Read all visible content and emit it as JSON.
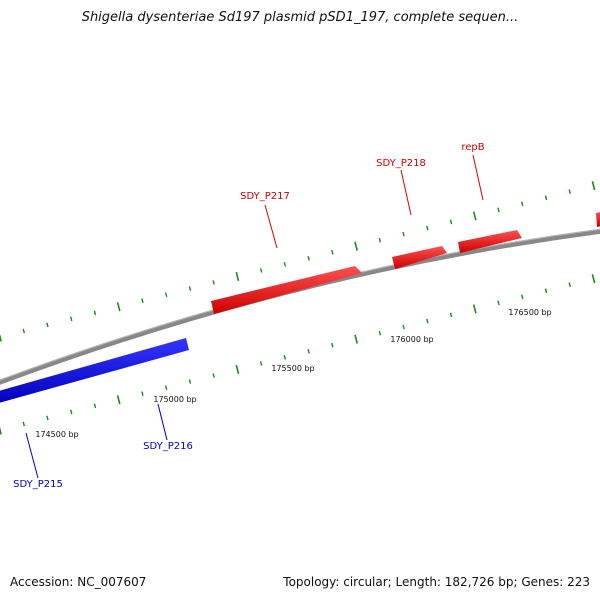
{
  "title": "Shigella dysenteriae Sd197 plasmid pSD1_197, complete sequen...",
  "footer": {
    "accession": "Accession: NC_007607",
    "summary": "Topology: circular; Length: 182,726 bp; Genes: 223"
  },
  "colors": {
    "forward_gene": "#ee1111",
    "reverse_gene": "#1111ee",
    "backbone": "#888888",
    "tick": "#1a8a1a",
    "label_text": "#111111"
  },
  "gene_labels": {
    "sdy_p215": "SDY_P215",
    "sdy_p216": "SDY_P216",
    "sdy_p217": "SDY_P217",
    "sdy_p218": "SDY_P218",
    "repb": "repB"
  },
  "ruler_labels": [
    "174500 bp",
    "175000 bp",
    "175500 bp",
    "176000 bp",
    "176500 bp"
  ]
}
